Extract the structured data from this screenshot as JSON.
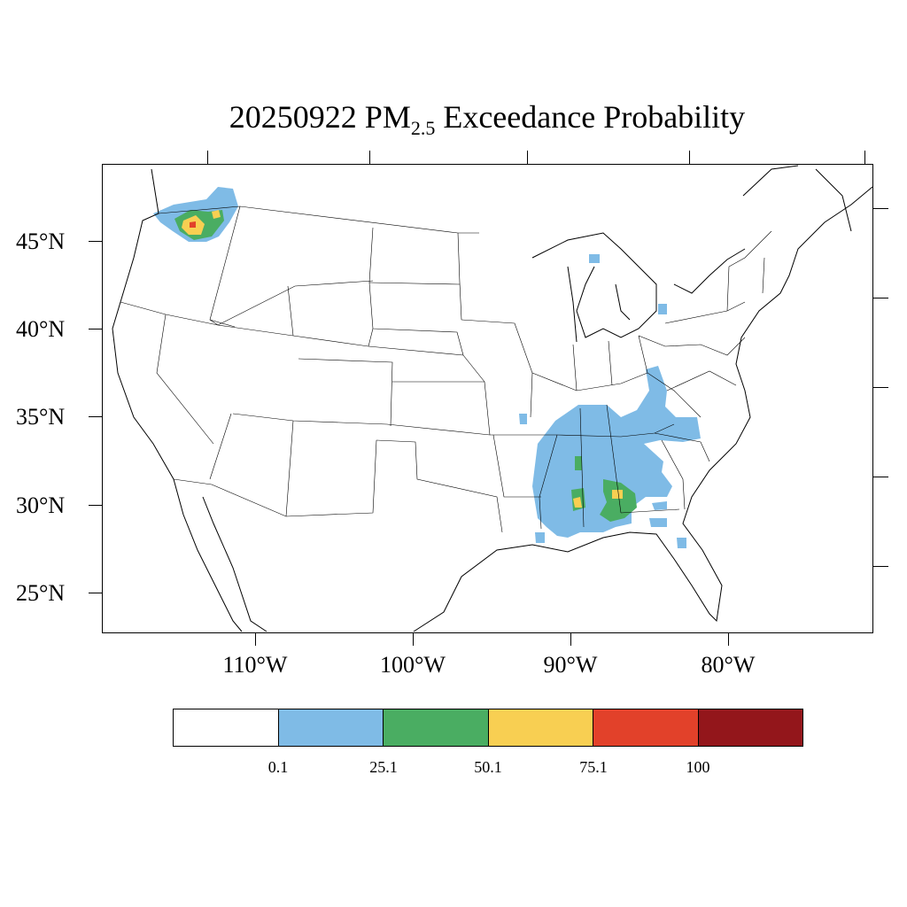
{
  "title": {
    "prefix": "20250922 PM",
    "subscript": "2.5",
    "suffix": " Exceedance Probability"
  },
  "lat_labels": [
    "45°N",
    "40°N",
    "35°N",
    "30°N",
    "25°N"
  ],
  "lon_labels": [
    "110°W",
    "100°W",
    "90°W",
    "80°W"
  ],
  "colorbar": {
    "colors": [
      "#ffffff",
      "#7fbbe6",
      "#4aad62",
      "#f8cf52",
      "#e2412a",
      "#93161b"
    ],
    "labels": [
      "0.1",
      "25.1",
      "50.1",
      "75.1",
      "100"
    ]
  },
  "map_data": {
    "projection": "Lambert conformal (CONUS)",
    "outlines": "coastlines and US state boundaries",
    "probability_regions": [
      {
        "area": "Washington / Cascades",
        "max_category": "75.1-100"
      },
      {
        "area": "Mississippi / Alabama / Tennessee",
        "max_category": "50.1-75.1"
      },
      {
        "area": "Kentucky / Tennessee",
        "max_category": "0.1-25.1"
      },
      {
        "area": "Georgia / South Carolina",
        "max_category": "0.1-25.1"
      }
    ]
  }
}
